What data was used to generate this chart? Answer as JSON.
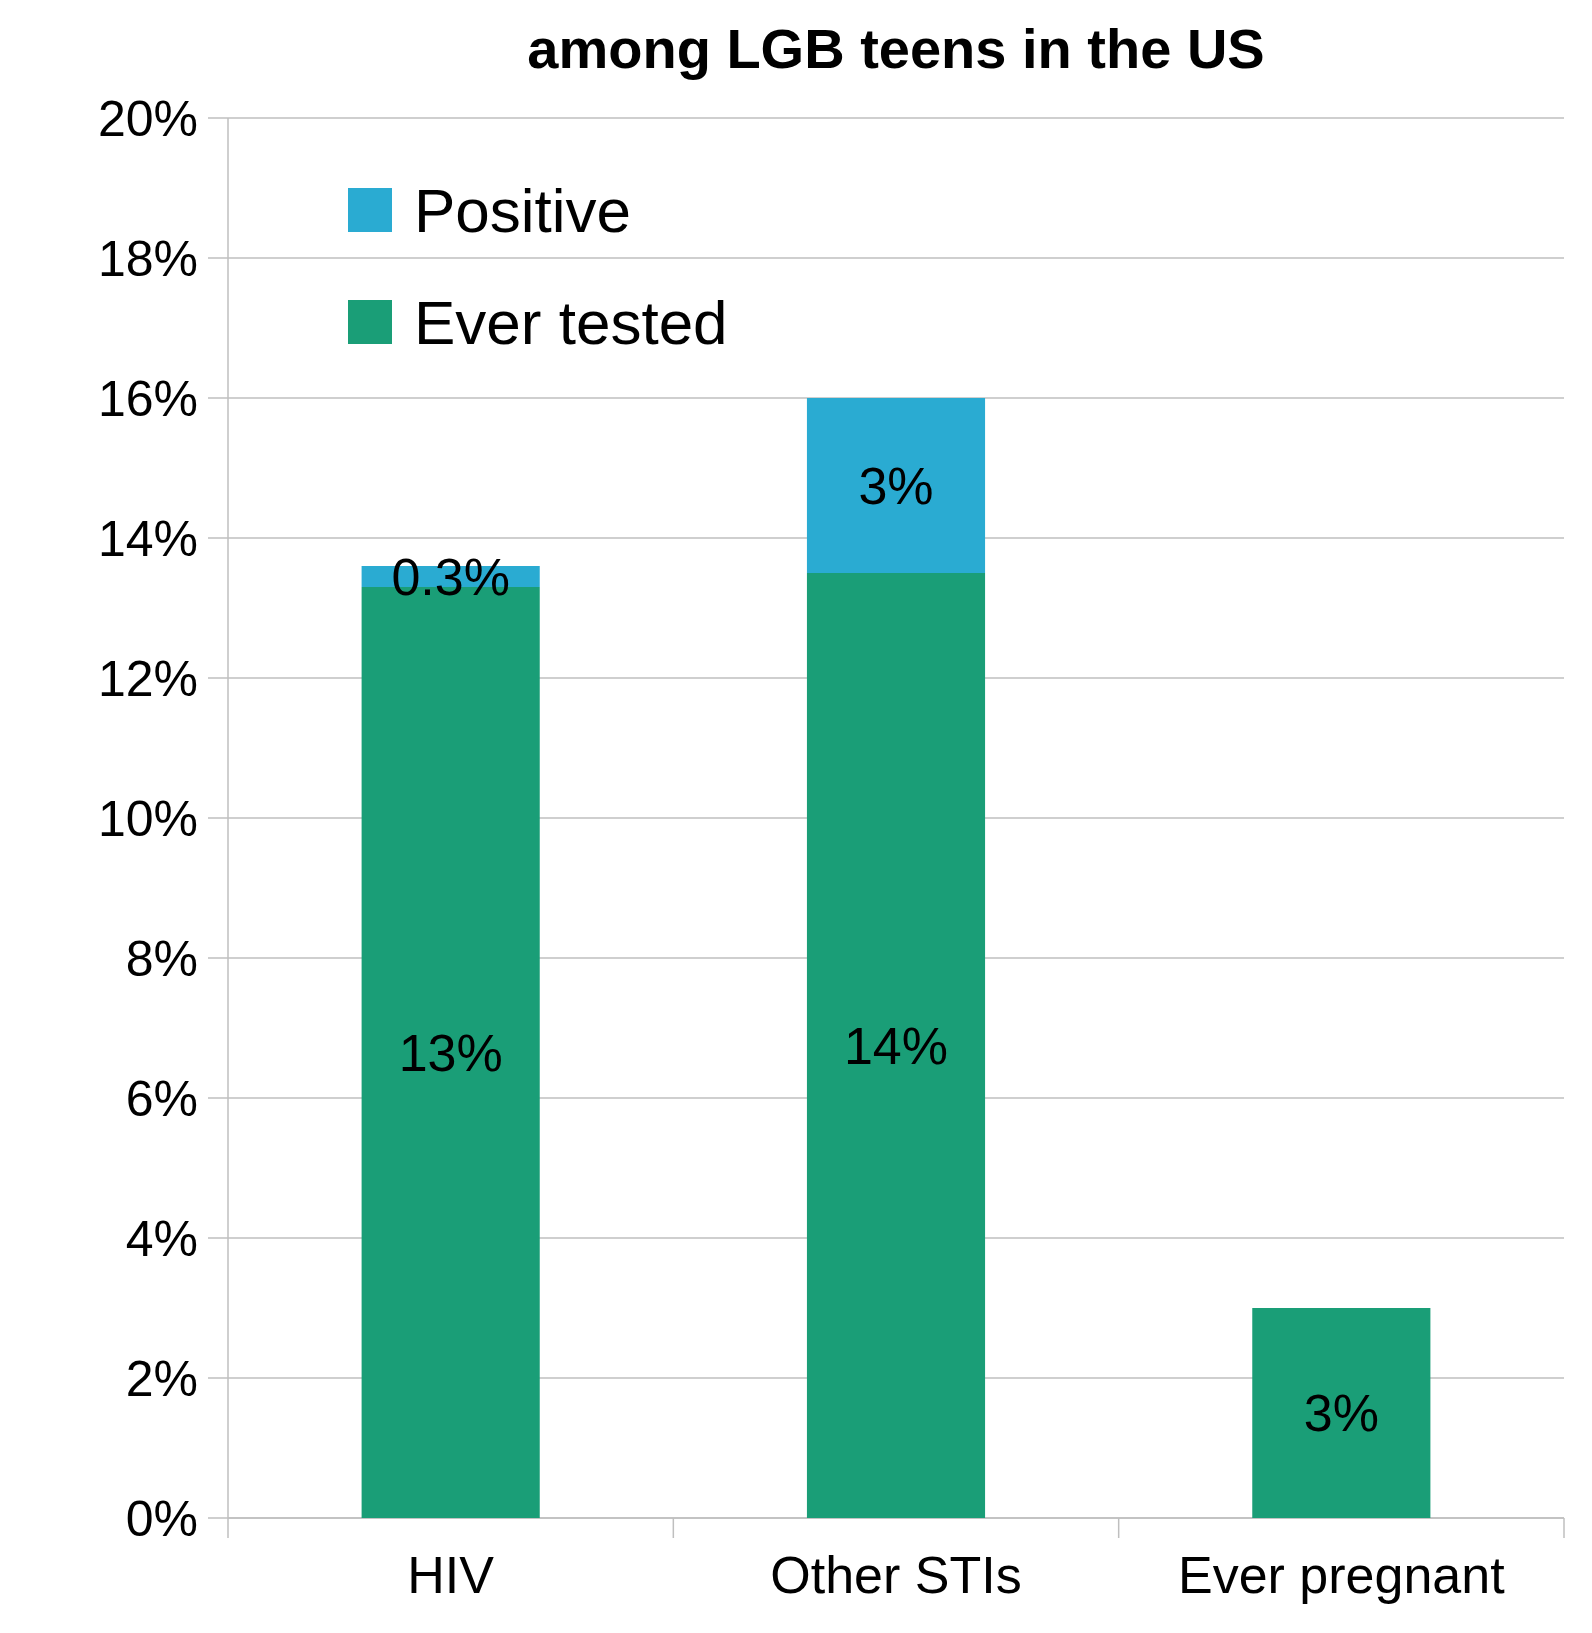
{
  "chart_data": {
    "type": "bar",
    "title": "among LGB teens in the US",
    "categories": [
      "HIV",
      "Other STIs",
      "Ever pregnant"
    ],
    "stacked": true,
    "series": [
      {
        "name": "Ever tested",
        "color": "#1a9e77",
        "values": [
          13.3,
          13.5,
          3.0
        ],
        "value_labels": [
          "13%",
          "14%",
          "3%"
        ]
      },
      {
        "name": "Positive",
        "color": "#2aabd2",
        "values": [
          0.3,
          2.5,
          null
        ],
        "value_labels": [
          "0.3%",
          "3%",
          null
        ]
      }
    ],
    "ylim": [
      0,
      20
    ],
    "yticks": [
      {
        "value": 0,
        "label": "0%"
      },
      {
        "value": 2,
        "label": "2%"
      },
      {
        "value": 4,
        "label": "4%"
      },
      {
        "value": 6,
        "label": "6%"
      },
      {
        "value": 8,
        "label": "8%"
      },
      {
        "value": 10,
        "label": "10%"
      },
      {
        "value": 12,
        "label": "12%"
      },
      {
        "value": 14,
        "label": "14%"
      },
      {
        "value": 16,
        "label": "16%"
      },
      {
        "value": 18,
        "label": "18%"
      },
      {
        "value": 20,
        "label": "20%"
      }
    ],
    "grid": "y",
    "legend": "top left"
  }
}
